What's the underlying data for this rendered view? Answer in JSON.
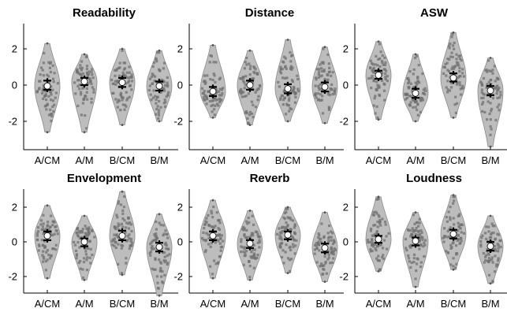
{
  "chart_data": [
    {
      "type": "violin",
      "title": "Readability",
      "categories": [
        "A/CM",
        "A/M",
        "B/CM",
        "B/M"
      ],
      "ylim": [
        -3.5,
        3.5
      ],
      "yticks": [
        -2,
        0,
        2
      ],
      "series": [
        {
          "category": "A/CM",
          "median": -0.05,
          "q1": -0.25,
          "q3": 0.25,
          "min": -2.6,
          "max": 2.3
        },
        {
          "category": "A/M",
          "median": 0.2,
          "q1": 0.0,
          "q3": 0.4,
          "min": -2.6,
          "max": 1.7
        },
        {
          "category": "B/CM",
          "median": 0.15,
          "q1": -0.1,
          "q3": 0.4,
          "min": -2.2,
          "max": 2.0
        },
        {
          "category": "B/M",
          "median": -0.05,
          "q1": -0.3,
          "q3": 0.2,
          "min": -2.0,
          "max": 1.9
        }
      ]
    },
    {
      "type": "violin",
      "title": "Distance",
      "categories": [
        "A/CM",
        "A/M",
        "B/CM",
        "B/M"
      ],
      "ylim": [
        -3.5,
        3.5
      ],
      "yticks": [
        -2,
        0,
        2
      ],
      "series": [
        {
          "category": "A/CM",
          "median": -0.35,
          "q1": -0.6,
          "q3": -0.1,
          "min": -1.8,
          "max": 2.2
        },
        {
          "category": "A/M",
          "median": 0.0,
          "q1": -0.25,
          "q3": 0.25,
          "min": -2.2,
          "max": 1.9
        },
        {
          "category": "B/CM",
          "median": -0.2,
          "q1": -0.45,
          "q3": 0.05,
          "min": -2.0,
          "max": 2.5
        },
        {
          "category": "B/M",
          "median": -0.1,
          "q1": -0.35,
          "q3": 0.15,
          "min": -2.1,
          "max": 2.1
        }
      ]
    },
    {
      "type": "violin",
      "title": "ASW",
      "categories": [
        "A/CM",
        "A/M",
        "B/CM",
        "B/M"
      ],
      "ylim": [
        -3.5,
        3.5
      ],
      "yticks": [
        -2,
        0,
        2
      ],
      "series": [
        {
          "category": "A/CM",
          "median": 0.55,
          "q1": 0.35,
          "q3": 0.8,
          "min": -1.9,
          "max": 2.4
        },
        {
          "category": "A/M",
          "median": -0.45,
          "q1": -0.7,
          "q3": -0.2,
          "min": -2.0,
          "max": 1.7
        },
        {
          "category": "B/CM",
          "median": 0.4,
          "q1": 0.2,
          "q3": 0.65,
          "min": -1.8,
          "max": 2.9
        },
        {
          "category": "B/M",
          "median": -0.3,
          "q1": -0.55,
          "q3": -0.05,
          "min": -3.4,
          "max": 1.5
        }
      ]
    },
    {
      "type": "violin",
      "title": "Envelopment",
      "categories": [
        "A/CM",
        "A/M",
        "B/CM",
        "B/M"
      ],
      "ylim": [
        -3.5,
        3.5
      ],
      "yticks": [
        -2,
        0,
        2
      ],
      "series": [
        {
          "category": "A/CM",
          "median": 0.35,
          "q1": 0.1,
          "q3": 0.6,
          "min": -2.1,
          "max": 2.1
        },
        {
          "category": "A/M",
          "median": 0.0,
          "q1": -0.25,
          "q3": 0.2,
          "min": -2.2,
          "max": 1.5
        },
        {
          "category": "B/CM",
          "median": 0.35,
          "q1": 0.1,
          "q3": 0.65,
          "min": -1.9,
          "max": 2.9
        },
        {
          "category": "B/M",
          "median": -0.3,
          "q1": -0.55,
          "q3": -0.05,
          "min": -3.1,
          "max": 1.6
        }
      ]
    },
    {
      "type": "violin",
      "title": "Reverb",
      "categories": [
        "A/CM",
        "A/M",
        "B/CM",
        "B/M"
      ],
      "ylim": [
        -3.5,
        3.5
      ],
      "yticks": [
        -2,
        0,
        2
      ],
      "series": [
        {
          "category": "A/CM",
          "median": 0.35,
          "q1": 0.1,
          "q3": 0.6,
          "min": -2.1,
          "max": 2.4
        },
        {
          "category": "A/M",
          "median": -0.1,
          "q1": -0.35,
          "q3": 0.1,
          "min": -2.2,
          "max": 1.8
        },
        {
          "category": "B/CM",
          "median": 0.4,
          "q1": 0.15,
          "q3": 0.6,
          "min": -1.8,
          "max": 2.0
        },
        {
          "category": "B/M",
          "median": -0.35,
          "q1": -0.6,
          "q3": -0.1,
          "min": -2.3,
          "max": 1.7
        }
      ]
    },
    {
      "type": "violin",
      "title": "Loudness",
      "categories": [
        "A/CM",
        "A/M",
        "B/CM",
        "B/M"
      ],
      "ylim": [
        -3.5,
        3.5
      ],
      "yticks": [
        -2,
        0,
        2
      ],
      "series": [
        {
          "category": "A/CM",
          "median": 0.15,
          "q1": -0.05,
          "q3": 0.35,
          "min": -1.7,
          "max": 2.6
        },
        {
          "category": "A/M",
          "median": 0.05,
          "q1": -0.2,
          "q3": 0.25,
          "min": -2.6,
          "max": 1.7
        },
        {
          "category": "B/CM",
          "median": 0.45,
          "q1": 0.2,
          "q3": 0.7,
          "min": -1.6,
          "max": 2.7
        },
        {
          "category": "B/M",
          "median": -0.25,
          "q1": -0.5,
          "q3": 0.0,
          "min": -2.4,
          "max": 1.5
        }
      ]
    }
  ]
}
